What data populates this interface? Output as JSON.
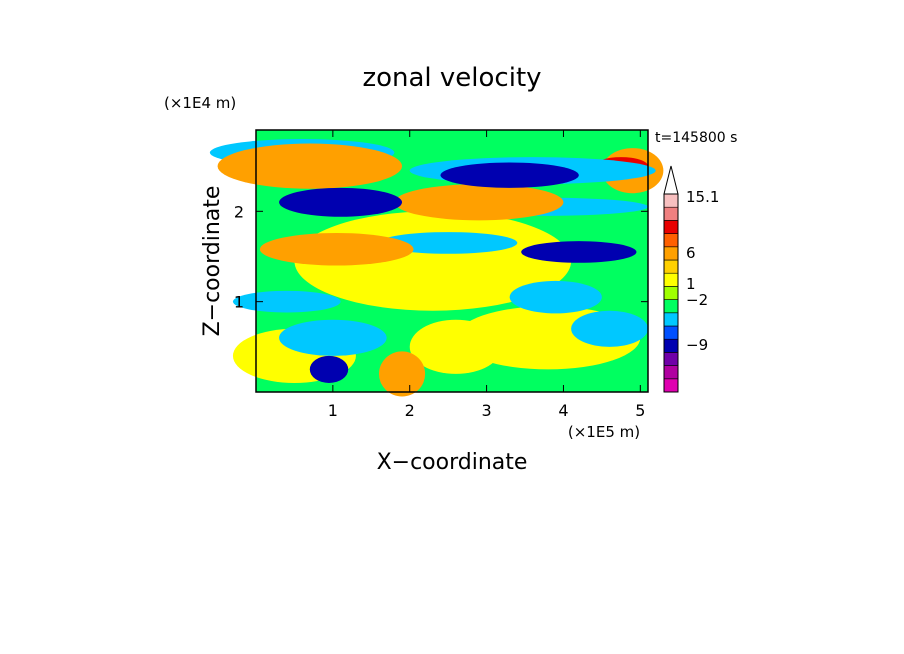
{
  "chart_data": {
    "type": "heatmap",
    "title": "zonal velocity",
    "xlabel": "X−coordinate",
    "ylabel": "Z−coordinate",
    "x_unit": "(×1E5 m)",
    "y_unit": "(×1E4 m)",
    "time_label": "t=145800 s",
    "xlim": [
      0,
      5.1
    ],
    "ylim": [
      0,
      2.9
    ],
    "x_ticks": [
      {
        "v": 1,
        "label": "1"
      },
      {
        "v": 2,
        "label": "2"
      },
      {
        "v": 3,
        "label": "3"
      },
      {
        "v": 4,
        "label": "4"
      },
      {
        "v": 5,
        "label": "5"
      }
    ],
    "y_ticks": [
      {
        "v": 1,
        "label": "1"
      },
      {
        "v": 2,
        "label": "2"
      }
    ],
    "colorbar": {
      "colors": [
        "#e000b0",
        "#b000a0",
        "#7000a8",
        "#0000b0",
        "#0050ff",
        "#00c8ff",
        "#00ff60",
        "#a0ff00",
        "#ffff00",
        "#ffd000",
        "#ffa000",
        "#ff6000",
        "#e80000",
        "#f08080",
        "#f8c0c0"
      ],
      "tick_labels": [
        "15.1",
        "6",
        "1",
        "−2",
        "−9"
      ]
    },
    "blobs": [
      {
        "x": 2.3,
        "z": 1.45,
        "rx": 1.8,
        "rz": 0.55,
        "v": 1
      },
      {
        "x": 0.5,
        "z": 0.4,
        "rx": 0.8,
        "rz": 0.3,
        "v": 1
      },
      {
        "x": 3.8,
        "z": 0.6,
        "rx": 1.2,
        "rz": 0.35,
        "v": 1
      },
      {
        "x": 2.6,
        "z": 0.5,
        "rx": 0.6,
        "rz": 0.3,
        "v": 1
      },
      {
        "x": 0.4,
        "z": 1.0,
        "rx": 0.7,
        "rz": 0.12,
        "v": -2
      },
      {
        "x": 3.9,
        "z": 1.05,
        "rx": 0.6,
        "rz": 0.18,
        "v": -2
      },
      {
        "x": 2.5,
        "z": 1.65,
        "rx": 0.9,
        "rz": 0.12,
        "v": -2
      },
      {
        "x": 3.8,
        "z": 2.05,
        "rx": 1.3,
        "rz": 0.1,
        "v": -2
      },
      {
        "x": 0.6,
        "z": 2.65,
        "rx": 1.2,
        "rz": 0.15,
        "v": -2
      },
      {
        "x": 0.7,
        "z": 2.5,
        "rx": 1.2,
        "rz": 0.25,
        "v": 4
      },
      {
        "x": 2.9,
        "z": 2.1,
        "rx": 1.1,
        "rz": 0.2,
        "v": 4
      },
      {
        "x": 1.05,
        "z": 1.58,
        "rx": 1.0,
        "rz": 0.18,
        "v": 4
      },
      {
        "x": 4.9,
        "z": 2.45,
        "rx": 0.4,
        "rz": 0.25,
        "v": 4
      },
      {
        "x": 4.75,
        "z": 2.5,
        "rx": 0.35,
        "rz": 0.1,
        "v": 7
      },
      {
        "x": 3.6,
        "z": 2.45,
        "rx": 1.6,
        "rz": 0.15,
        "v": -2
      },
      {
        "x": 1.1,
        "z": 2.1,
        "rx": 0.8,
        "rz": 0.16,
        "v": -6
      },
      {
        "x": 3.3,
        "z": 2.4,
        "rx": 0.9,
        "rz": 0.14,
        "v": -6
      },
      {
        "x": 4.2,
        "z": 1.55,
        "rx": 0.75,
        "rz": 0.12,
        "v": -6
      },
      {
        "x": 4.6,
        "z": 0.7,
        "rx": 0.5,
        "rz": 0.2,
        "v": -2
      },
      {
        "x": 1.0,
        "z": 0.6,
        "rx": 0.7,
        "rz": 0.2,
        "v": -2
      },
      {
        "x": 1.9,
        "z": 0.2,
        "rx": 0.3,
        "rz": 0.25,
        "v": 4
      },
      {
        "x": 0.95,
        "z": 0.25,
        "rx": 0.25,
        "rz": 0.15,
        "v": -6
      }
    ]
  }
}
